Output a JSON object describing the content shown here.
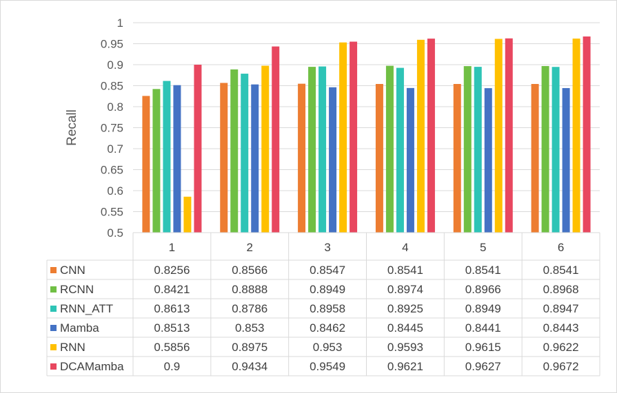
{
  "chart_data": {
    "type": "bar",
    "title": "",
    "xlabel": "",
    "ylabel": "Recall",
    "ylim": [
      0.5,
      1
    ],
    "yticks": [
      "0.5",
      "0.55",
      "0.6",
      "0.65",
      "0.7",
      "0.75",
      "0.8",
      "0.85",
      "0.9",
      "0.95",
      "1"
    ],
    "grid": true,
    "legend": "data-table",
    "categories": [
      "1",
      "2",
      "3",
      "4",
      "5",
      "6"
    ],
    "series": [
      {
        "name": "CNN",
        "color": "#ED7D31",
        "values": [
          0.8256,
          0.8566,
          0.8547,
          0.8541,
          0.8541,
          0.8541
        ],
        "labels": [
          "0.8256",
          "0.8566",
          "0.8547",
          "0.8541",
          "0.8541",
          "0.8541"
        ]
      },
      {
        "name": "RCNN",
        "color": "#70BF44",
        "values": [
          0.8421,
          0.8888,
          0.8949,
          0.8974,
          0.8966,
          0.8968
        ],
        "labels": [
          "0.8421",
          "0.8888",
          "0.8949",
          "0.8974",
          "0.8966",
          "0.8968"
        ]
      },
      {
        "name": "RNN_ATT",
        "color": "#2EC4B6",
        "values": [
          0.8613,
          0.8786,
          0.8958,
          0.8925,
          0.8949,
          0.8947
        ],
        "labels": [
          "0.8613",
          "0.8786",
          "0.8958",
          "0.8925",
          "0.8949",
          "0.8947"
        ]
      },
      {
        "name": "Mamba",
        "color": "#4472C4",
        "values": [
          0.8513,
          0.853,
          0.8462,
          0.8445,
          0.8441,
          0.8443
        ],
        "labels": [
          "0.8513",
          "0.853",
          "0.8462",
          "0.8445",
          "0.8441",
          "0.8443"
        ]
      },
      {
        "name": "RNN",
        "color": "#FFC000",
        "values": [
          0.5856,
          0.8975,
          0.953,
          0.9593,
          0.9615,
          0.9622
        ],
        "labels": [
          "0.5856",
          "0.8975",
          "0.953",
          "0.9593",
          "0.9615",
          "0.9622"
        ]
      },
      {
        "name": "DCAMamba",
        "color": "#E8475F",
        "values": [
          0.9,
          0.9434,
          0.9549,
          0.9621,
          0.9627,
          0.9672
        ],
        "labels": [
          "0.9",
          "0.9434",
          "0.9549",
          "0.9621",
          "0.9627",
          "0.9672"
        ]
      }
    ]
  }
}
